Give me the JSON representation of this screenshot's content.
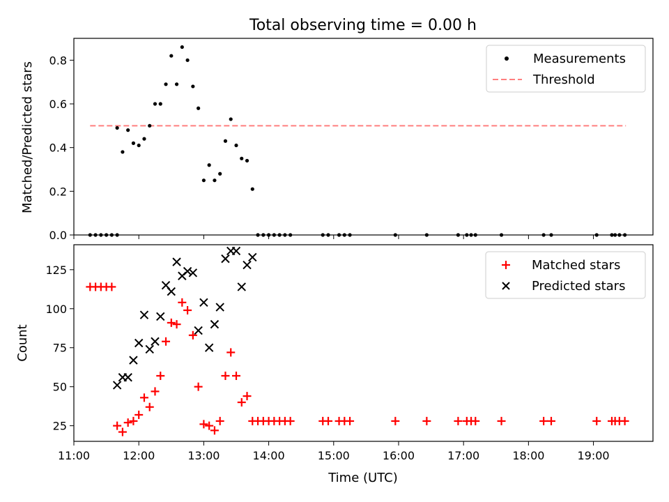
{
  "chart_data": [
    {
      "type": "scatter",
      "title": "Total observing time = 0.00 h",
      "xlabel": "",
      "ylabel": "Matched/Predicted stars",
      "xlim": [
        "11:00",
        "19:55"
      ],
      "ylim": [
        0,
        0.9
      ],
      "yticks": [
        0.0,
        0.2,
        0.4,
        0.6,
        0.8
      ],
      "ytick_labels": [
        "0.0",
        "0.2",
        "0.4",
        "0.6",
        "0.8"
      ],
      "legend_position": "top-right",
      "series": [
        {
          "name": "Measurements",
          "marker": "dot",
          "color": "#000000",
          "points": [
            [
              "11:15",
              0.0
            ],
            [
              "11:20",
              0.0
            ],
            [
              "11:25",
              0.0
            ],
            [
              "11:30",
              0.0
            ],
            [
              "11:35",
              0.0
            ],
            [
              "11:40",
              0.0
            ],
            [
              "11:40",
              0.49
            ],
            [
              "11:45",
              0.38
            ],
            [
              "11:50",
              0.48
            ],
            [
              "11:55",
              0.42
            ],
            [
              "12:00",
              0.41
            ],
            [
              "12:05",
              0.44
            ],
            [
              "12:10",
              0.5
            ],
            [
              "12:15",
              0.6
            ],
            [
              "12:20",
              0.6
            ],
            [
              "12:25",
              0.69
            ],
            [
              "12:30",
              0.82
            ],
            [
              "12:35",
              0.69
            ],
            [
              "12:40",
              0.86
            ],
            [
              "12:45",
              0.8
            ],
            [
              "12:50",
              0.68
            ],
            [
              "12:55",
              0.58
            ],
            [
              "13:00",
              0.25
            ],
            [
              "13:05",
              0.32
            ],
            [
              "13:10",
              0.25
            ],
            [
              "13:15",
              0.28
            ],
            [
              "13:20",
              0.43
            ],
            [
              "13:25",
              0.53
            ],
            [
              "13:30",
              0.41
            ],
            [
              "13:35",
              0.35
            ],
            [
              "13:40",
              0.34
            ],
            [
              "13:45",
              0.21
            ],
            [
              "13:50",
              0.0
            ],
            [
              "13:55",
              0.0
            ],
            [
              "14:00",
              0.0
            ],
            [
              "14:05",
              0.0
            ],
            [
              "14:10",
              0.0
            ],
            [
              "14:15",
              0.0
            ],
            [
              "14:20",
              0.0
            ],
            [
              "14:50",
              0.0
            ],
            [
              "14:55",
              0.0
            ],
            [
              "15:05",
              0.0
            ],
            [
              "15:10",
              0.0
            ],
            [
              "15:15",
              0.0
            ],
            [
              "15:57",
              0.0
            ],
            [
              "16:26",
              0.0
            ],
            [
              "16:55",
              0.0
            ],
            [
              "17:03",
              0.0
            ],
            [
              "17:07",
              0.0
            ],
            [
              "17:11",
              0.0
            ],
            [
              "17:35",
              0.0
            ],
            [
              "18:14",
              0.0
            ],
            [
              "18:21",
              0.0
            ],
            [
              "19:03",
              0.0
            ],
            [
              "19:17",
              0.0
            ],
            [
              "19:20",
              0.0
            ],
            [
              "19:24",
              0.0
            ],
            [
              "19:29",
              0.0
            ]
          ]
        },
        {
          "name": "Threshold",
          "marker": "dashed-line",
          "color": "#ff7f7f",
          "points": [
            [
              "11:15",
              0.5
            ],
            [
              "19:30",
              0.5
            ]
          ]
        }
      ]
    },
    {
      "type": "scatter",
      "title": "",
      "xlabel": "Time (UTC)",
      "ylabel": "Count",
      "xlim": [
        "11:00",
        "19:55"
      ],
      "ylim": [
        15,
        141
      ],
      "xticks": [
        "11:00",
        "12:00",
        "13:00",
        "14:00",
        "15:00",
        "16:00",
        "17:00",
        "18:00",
        "19:00"
      ],
      "yticks": [
        25,
        50,
        75,
        100,
        125
      ],
      "ytick_labels": [
        "25",
        "50",
        "75",
        "100",
        "125"
      ],
      "legend_position": "top-right",
      "series": [
        {
          "name": "Matched stars",
          "marker": "plus",
          "color": "#ff0000",
          "points": [
            [
              "11:15",
              114
            ],
            [
              "11:20",
              114
            ],
            [
              "11:25",
              114
            ],
            [
              "11:30",
              114
            ],
            [
              "11:35",
              114
            ],
            [
              "11:40",
              25
            ],
            [
              "11:45",
              21
            ],
            [
              "11:50",
              27
            ],
            [
              "11:55",
              28
            ],
            [
              "12:00",
              32
            ],
            [
              "12:05",
              43
            ],
            [
              "12:10",
              37
            ],
            [
              "12:15",
              47
            ],
            [
              "12:20",
              57
            ],
            [
              "12:25",
              79
            ],
            [
              "12:30",
              91
            ],
            [
              "12:35",
              90
            ],
            [
              "12:40",
              104
            ],
            [
              "12:45",
              99
            ],
            [
              "12:50",
              83
            ],
            [
              "12:55",
              50
            ],
            [
              "13:00",
              26
            ],
            [
              "13:05",
              25
            ],
            [
              "13:10",
              22
            ],
            [
              "13:15",
              28
            ],
            [
              "13:20",
              57
            ],
            [
              "13:25",
              72
            ],
            [
              "13:30",
              57
            ],
            [
              "13:35",
              40
            ],
            [
              "13:40",
              44
            ],
            [
              "13:45",
              28
            ],
            [
              "13:50",
              28
            ],
            [
              "13:55",
              28
            ],
            [
              "14:00",
              28
            ],
            [
              "14:05",
              28
            ],
            [
              "14:10",
              28
            ],
            [
              "14:15",
              28
            ],
            [
              "14:20",
              28
            ],
            [
              "14:50",
              28
            ],
            [
              "14:55",
              28
            ],
            [
              "15:05",
              28
            ],
            [
              "15:10",
              28
            ],
            [
              "15:15",
              28
            ],
            [
              "15:57",
              28
            ],
            [
              "16:26",
              28
            ],
            [
              "16:55",
              28
            ],
            [
              "17:03",
              28
            ],
            [
              "17:07",
              28
            ],
            [
              "17:11",
              28
            ],
            [
              "17:35",
              28
            ],
            [
              "18:14",
              28
            ],
            [
              "18:21",
              28
            ],
            [
              "19:03",
              28
            ],
            [
              "19:17",
              28
            ],
            [
              "19:20",
              28
            ],
            [
              "19:24",
              28
            ],
            [
              "19:29",
              28
            ]
          ]
        },
        {
          "name": "Predicted stars",
          "marker": "x",
          "color": "#000000",
          "points": [
            [
              "11:40",
              51
            ],
            [
              "11:45",
              56
            ],
            [
              "11:50",
              56
            ],
            [
              "11:55",
              67
            ],
            [
              "12:00",
              78
            ],
            [
              "12:05",
              96
            ],
            [
              "12:10",
              74
            ],
            [
              "12:15",
              79
            ],
            [
              "12:20",
              95
            ],
            [
              "12:25",
              115
            ],
            [
              "12:30",
              111
            ],
            [
              "12:35",
              130
            ],
            [
              "12:40",
              121
            ],
            [
              "12:45",
              124
            ],
            [
              "12:50",
              123
            ],
            [
              "12:55",
              86
            ],
            [
              "13:00",
              104
            ],
            [
              "13:05",
              75
            ],
            [
              "13:10",
              90
            ],
            [
              "13:15",
              101
            ],
            [
              "13:20",
              132
            ],
            [
              "13:25",
              137
            ],
            [
              "13:30",
              137
            ],
            [
              "13:35",
              114
            ],
            [
              "13:40",
              128
            ],
            [
              "13:45",
              133
            ]
          ]
        }
      ]
    }
  ]
}
